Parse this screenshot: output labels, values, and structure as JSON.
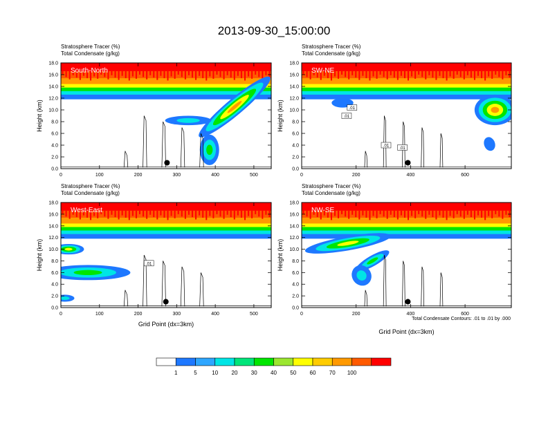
{
  "title": "2013-09-30_15:00:00",
  "colors": {
    "scale": [
      "#ffffff",
      "#1e78ff",
      "#2ea6ff",
      "#00e5e5",
      "#00e57a",
      "#00e600",
      "#9be62f",
      "#ffff00",
      "#ffcc00",
      "#ff9900",
      "#ff5a00",
      "#ff0000"
    ]
  },
  "legend": {
    "levels": [
      "1",
      "5",
      "10",
      "20",
      "30",
      "40",
      "50",
      "60",
      "70",
      "100"
    ]
  },
  "footnote": "Total Condensate Contours: .01 to .01 by .000",
  "chart_data": [
    {
      "type": "heatmap",
      "panel_label": "South-North",
      "header_line1": "Stratosphere Tracer   (%)",
      "header_line2": "Total Condensate   (g/kg)",
      "xlabel": "",
      "ylabel": "Height (km)",
      "xlim": [
        0,
        545
      ],
      "ylim": [
        0,
        18
      ],
      "xticks": [
        "0",
        "100",
        "200",
        "300",
        "400",
        "500"
      ],
      "yticks": [
        "0.0",
        "2.0",
        "4.0",
        "6.0",
        "8.0",
        "10.0",
        "12.0",
        "14.0",
        "16.0",
        "18.0"
      ],
      "marker": {
        "x": 275,
        "y": 1.0
      },
      "contour_labels": []
    },
    {
      "type": "heatmap",
      "panel_label": "SW-NE",
      "header_line1": "Stratosphere Tracer   (%)",
      "header_line2": "Total Condensate   (g/kg)",
      "xlabel": "",
      "ylabel": "Height (km)",
      "xlim": [
        0,
        770
      ],
      "ylim": [
        0,
        18
      ],
      "xticks": [
        "0",
        "200",
        "400",
        "600"
      ],
      "yticks": [
        "0.0",
        "2.0",
        "4.0",
        "6.0",
        "8.0",
        "10.0",
        "12.0",
        "14.0",
        "16.0",
        "18.0"
      ],
      "marker": {
        "x": 390,
        "y": 1.0
      },
      "contour_labels": [
        {
          "text": ".01",
          "x": 165,
          "y": 9.0
        },
        {
          "text": ".01",
          "x": 310,
          "y": 4.0
        },
        {
          "text": ".01",
          "x": 370,
          "y": 3.6
        },
        {
          "text": ".01",
          "x": 185,
          "y": 10.4
        }
      ]
    },
    {
      "type": "heatmap",
      "panel_label": "West-East",
      "header_line1": "Stratosphere Tracer   (%)",
      "header_line2": "Total Condensate   (g/kg)",
      "xlabel": "Grid Point (dx=3km)",
      "ylabel": "Height (km)",
      "xlim": [
        0,
        545
      ],
      "ylim": [
        0,
        18
      ],
      "xticks": [
        "0",
        "100",
        "200",
        "300",
        "400",
        "500"
      ],
      "yticks": [
        "0.0",
        "2.0",
        "4.0",
        "6.0",
        "8.0",
        "10.0",
        "12.0",
        "14.0",
        "16.0",
        "18.0"
      ],
      "marker": {
        "x": 272,
        "y": 1.0
      },
      "contour_labels": [
        {
          "text": ".01",
          "x": 228,
          "y": 7.6
        }
      ]
    },
    {
      "type": "heatmap",
      "panel_label": "NW-SE",
      "header_line1": "Stratosphere Tracer   (%)",
      "header_line2": "Total Condensate   (g/kg)",
      "xlabel": "Grid Point (dx=3km)",
      "ylabel": "Height (km)",
      "xlim": [
        0,
        770
      ],
      "ylim": [
        0,
        18
      ],
      "xticks": [
        "0",
        "200",
        "400",
        "600"
      ],
      "yticks": [
        "0.0",
        "2.0",
        "4.0",
        "6.0",
        "8.0",
        "10.0",
        "12.0",
        "14.0",
        "16.0",
        "18.0"
      ],
      "marker": {
        "x": 390,
        "y": 1.0
      },
      "contour_labels": []
    }
  ]
}
